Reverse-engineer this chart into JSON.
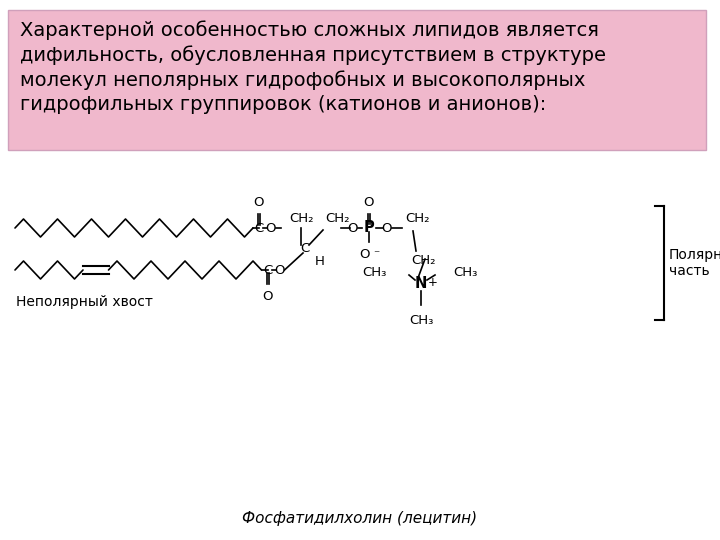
{
  "title_text": "Характерной особенностью сложных липидов является\nдифильность, обусловленная присутствием в структуре\nмолекул неполярных гидрофобных и высокополярных\nгидрофильных группировок (катионов и анионов):",
  "title_box_color": "#f0b8cc",
  "title_box_edge": "#d0a0bb",
  "bg_color": "#ffffff",
  "label_nonpolar": "Неполярный хвост",
  "label_polar": "Полярная\nчасть",
  "label_molecule": "Фосфатидилхолин (лецитин)",
  "text_color": "#000000",
  "title_fontsize": 14,
  "label_fontsize": 10,
  "chem_fontsize": 9.5
}
